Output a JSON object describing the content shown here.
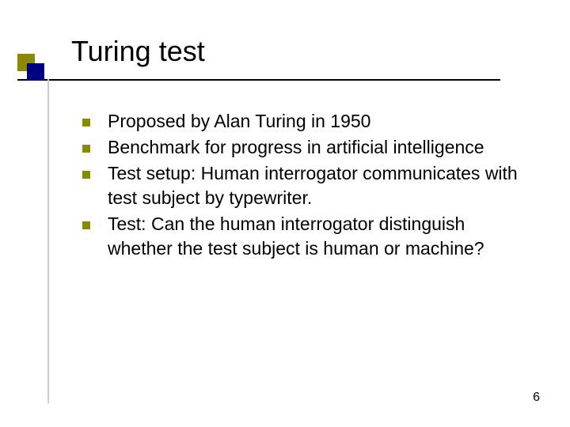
{
  "slide": {
    "title": "Turing test",
    "bullets": [
      "Proposed by Alan Turing in 1950",
      "Benchmark for progress in artificial intelligence",
      "Test setup: Human interrogator communicates with test subject by typewriter.",
      "Test: Can the human interrogator distinguish whether the test subject is human or machine?"
    ],
    "page_number": "6"
  },
  "style": {
    "accent_color_olive": "#8a8a00",
    "accent_color_navy": "#000080",
    "vline_color": "#cccccc",
    "background_color": "#ffffff",
    "title_fontsize": 36,
    "body_fontsize": 23,
    "bullet_marker_size": 10,
    "underline_width": 610,
    "square_size": 22
  }
}
